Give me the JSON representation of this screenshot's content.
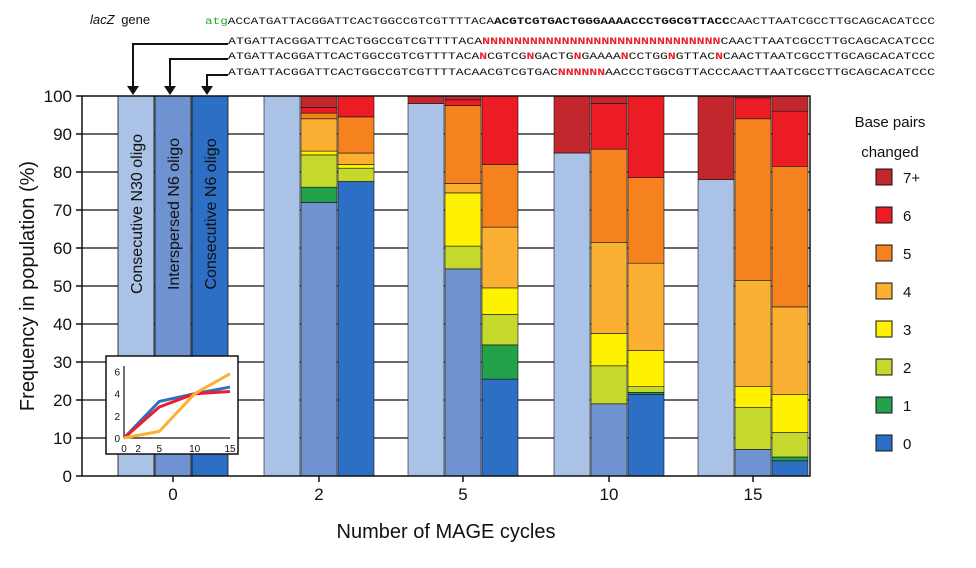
{
  "header": {
    "gene_label": "lacZ",
    "gene_suffix": "gene",
    "seq_lines": [
      {
        "segments": [
          {
            "text": "atg",
            "color": "#22aa22",
            "bold": false
          },
          {
            "text": "ACCATGATTACGGATTCACTGGCCGTCGTTTTACA",
            "color": "#111111",
            "bold": false
          },
          {
            "text": "ACGTCGTGACTGGGAAAACCCTGGCGTTACC",
            "color": "#111111",
            "bold": true
          },
          {
            "text": "CAACTTAATCGCCTTGCAGCACATCCC",
            "color": "#111111",
            "bold": false
          }
        ]
      },
      {
        "segments": [
          {
            "text": "ATGATTACGGATTCACTGGCCGTCGTTTTACA",
            "color": "#111111",
            "bold": false
          },
          {
            "text": "NNNNNNNNNNNNNNNNNNNNNNNNNNNNNN",
            "color": "#e8202a",
            "bold": true
          },
          {
            "text": "CAACTTAATCGCCTTGCAGCACATCCC",
            "color": "#111111",
            "bold": false
          }
        ]
      },
      {
        "segments": [
          {
            "text": "ATGATTACGGATTCACTGGCCGTCGTTTTACA",
            "color": "#111111",
            "bold": false
          },
          {
            "text": "N",
            "color": "#e8202a",
            "bold": true
          },
          {
            "text": "CGTCG",
            "color": "#111111",
            "bold": false
          },
          {
            "text": "N",
            "color": "#e8202a",
            "bold": true
          },
          {
            "text": "GACTG",
            "color": "#111111",
            "bold": false
          },
          {
            "text": "N",
            "color": "#e8202a",
            "bold": true
          },
          {
            "text": "GAAAA",
            "color": "#111111",
            "bold": false
          },
          {
            "text": "N",
            "color": "#e8202a",
            "bold": true
          },
          {
            "text": "CCTGG",
            "color": "#111111",
            "bold": false
          },
          {
            "text": "N",
            "color": "#e8202a",
            "bold": true
          },
          {
            "text": "GTTAC",
            "color": "#111111",
            "bold": false
          },
          {
            "text": "N",
            "color": "#e8202a",
            "bold": true
          },
          {
            "text": "CAACTTAATCGCCTTGCAGCACATCCC",
            "color": "#111111",
            "bold": false
          }
        ]
      },
      {
        "segments": [
          {
            "text": "ATGATTACGGATTCACTGGCCGTCGTTTTACAACGTCGTGAC",
            "color": "#111111",
            "bold": false
          },
          {
            "text": "NNNNNN",
            "color": "#e8202a",
            "bold": true
          },
          {
            "text": "AACCCTGGCGTTACCCAACTTAATCGCCTTGCAGCACATCCC",
            "color": "#111111",
            "bold": false
          }
        ]
      }
    ]
  },
  "chart_data": {
    "type": "bar",
    "stacked": true,
    "xlabel": "Number of MAGE cycles",
    "ylabel": "Frequency in population (%)",
    "ylim": [
      0,
      100
    ],
    "yticks": [
      0,
      10,
      20,
      30,
      40,
      50,
      60,
      70,
      80,
      90,
      100
    ],
    "grid": true,
    "categories": [
      "0",
      "2",
      "5",
      "10",
      "15"
    ],
    "oligos": [
      {
        "label": "Consecutive N30 oligo",
        "color": "#a9c2e6"
      },
      {
        "label": "Interspersed N6 oligo",
        "color": "#6f92d0"
      },
      {
        "label": "Consecutive N6 oligo",
        "color": "#2d6fc4"
      }
    ],
    "legend": {
      "title_line1": "Base pairs",
      "title_line2": "changed",
      "position": "right",
      "entries": [
        {
          "label": "7+",
          "color": "#c1272d"
        },
        {
          "label": "6",
          "color": "#ec1c24"
        },
        {
          "label": "5",
          "color": "#f5821f"
        },
        {
          "label": "4",
          "color": "#fbb034"
        },
        {
          "label": "3",
          "color": "#fff200"
        },
        {
          "label": "2",
          "color": "#c4d82e"
        },
        {
          "label": "1",
          "color": "#22a14a"
        },
        {
          "label": "0",
          "color": "#2d6fc4"
        }
      ]
    },
    "stack_order": [
      "0",
      "1",
      "2",
      "3",
      "4",
      "5",
      "6",
      "7+"
    ],
    "bars": [
      {
        "cycle": "2",
        "oligo": 0,
        "values": {
          "0": 100,
          "1": 0,
          "2": 0,
          "3": 0,
          "4": 0,
          "5": 0,
          "6": 0,
          "7+": 0
        }
      },
      {
        "cycle": "2",
        "oligo": 1,
        "values": {
          "0": 72,
          "1": 4,
          "2": 8.5,
          "3": 1,
          "4": 8.5,
          "5": 1.5,
          "6": 1.5,
          "7+": 3
        }
      },
      {
        "cycle": "2",
        "oligo": 2,
        "values": {
          "0": 77.5,
          "1": 0,
          "2": 3.5,
          "3": 1,
          "4": 3,
          "5": 9.5,
          "6": 5.5,
          "7+": 0
        }
      },
      {
        "cycle": "5",
        "oligo": 0,
        "values": {
          "0": 98,
          "1": 0,
          "2": 0,
          "3": 0,
          "4": 0,
          "5": 0,
          "6": 0,
          "7+": 2
        }
      },
      {
        "cycle": "5",
        "oligo": 1,
        "values": {
          "0": 54.5,
          "1": 0,
          "2": 6,
          "3": 14,
          "4": 2.5,
          "5": 20.5,
          "6": 1.5,
          "7+": 1
        }
      },
      {
        "cycle": "5",
        "oligo": 2,
        "values": {
          "0": 25.5,
          "1": 9,
          "2": 8,
          "3": 7,
          "4": 16,
          "5": 16.5,
          "6": 18,
          "7+": 0
        }
      },
      {
        "cycle": "10",
        "oligo": 0,
        "values": {
          "0": 85,
          "1": 0,
          "2": 0,
          "3": 0,
          "4": 0,
          "5": 0,
          "6": 0,
          "7+": 15
        }
      },
      {
        "cycle": "10",
        "oligo": 1,
        "values": {
          "0": 19,
          "1": 0,
          "2": 10,
          "3": 8.5,
          "4": 24,
          "5": 24.5,
          "6": 12,
          "7+": 2
        }
      },
      {
        "cycle": "10",
        "oligo": 2,
        "values": {
          "0": 21.5,
          "1": 0.5,
          "2": 1.5,
          "3": 9.5,
          "4": 23,
          "5": 22.5,
          "6": 21.5,
          "7+": 0
        }
      },
      {
        "cycle": "15",
        "oligo": 0,
        "values": {
          "0": 78,
          "1": 0,
          "2": 0,
          "3": 0,
          "4": 0,
          "5": 0,
          "6": 0,
          "7+": 22
        }
      },
      {
        "cycle": "15",
        "oligo": 1,
        "values": {
          "0": 7,
          "1": 0,
          "2": 11,
          "3": 5.5,
          "4": 28,
          "5": 42.5,
          "6": 5.5,
          "7+": 0.5
        }
      },
      {
        "cycle": "15",
        "oligo": 2,
        "values": {
          "0": 4,
          "1": 1,
          "2": 6.5,
          "3": 10,
          "4": 23,
          "5": 37,
          "6": 14.5,
          "7+": 4
        }
      }
    ],
    "inset": {
      "type": "line",
      "xticks": [
        0,
        2,
        5,
        10,
        15
      ],
      "yticks": [
        0,
        2,
        4,
        6
      ],
      "xlim": [
        0,
        15
      ],
      "ylim": [
        0,
        6.5
      ],
      "series": [
        {
          "color": "#2d6fc4",
          "x": [
            0,
            5,
            10,
            15
          ],
          "y": [
            0,
            3.3,
            4.0,
            4.6
          ]
        },
        {
          "color": "#e8202a",
          "x": [
            0,
            5,
            10,
            15
          ],
          "y": [
            0,
            2.8,
            4.0,
            4.2
          ]
        },
        {
          "color": "#fbb034",
          "x": [
            0,
            5,
            10,
            15
          ],
          "y": [
            0,
            0.6,
            4.0,
            5.8
          ]
        }
      ]
    }
  }
}
